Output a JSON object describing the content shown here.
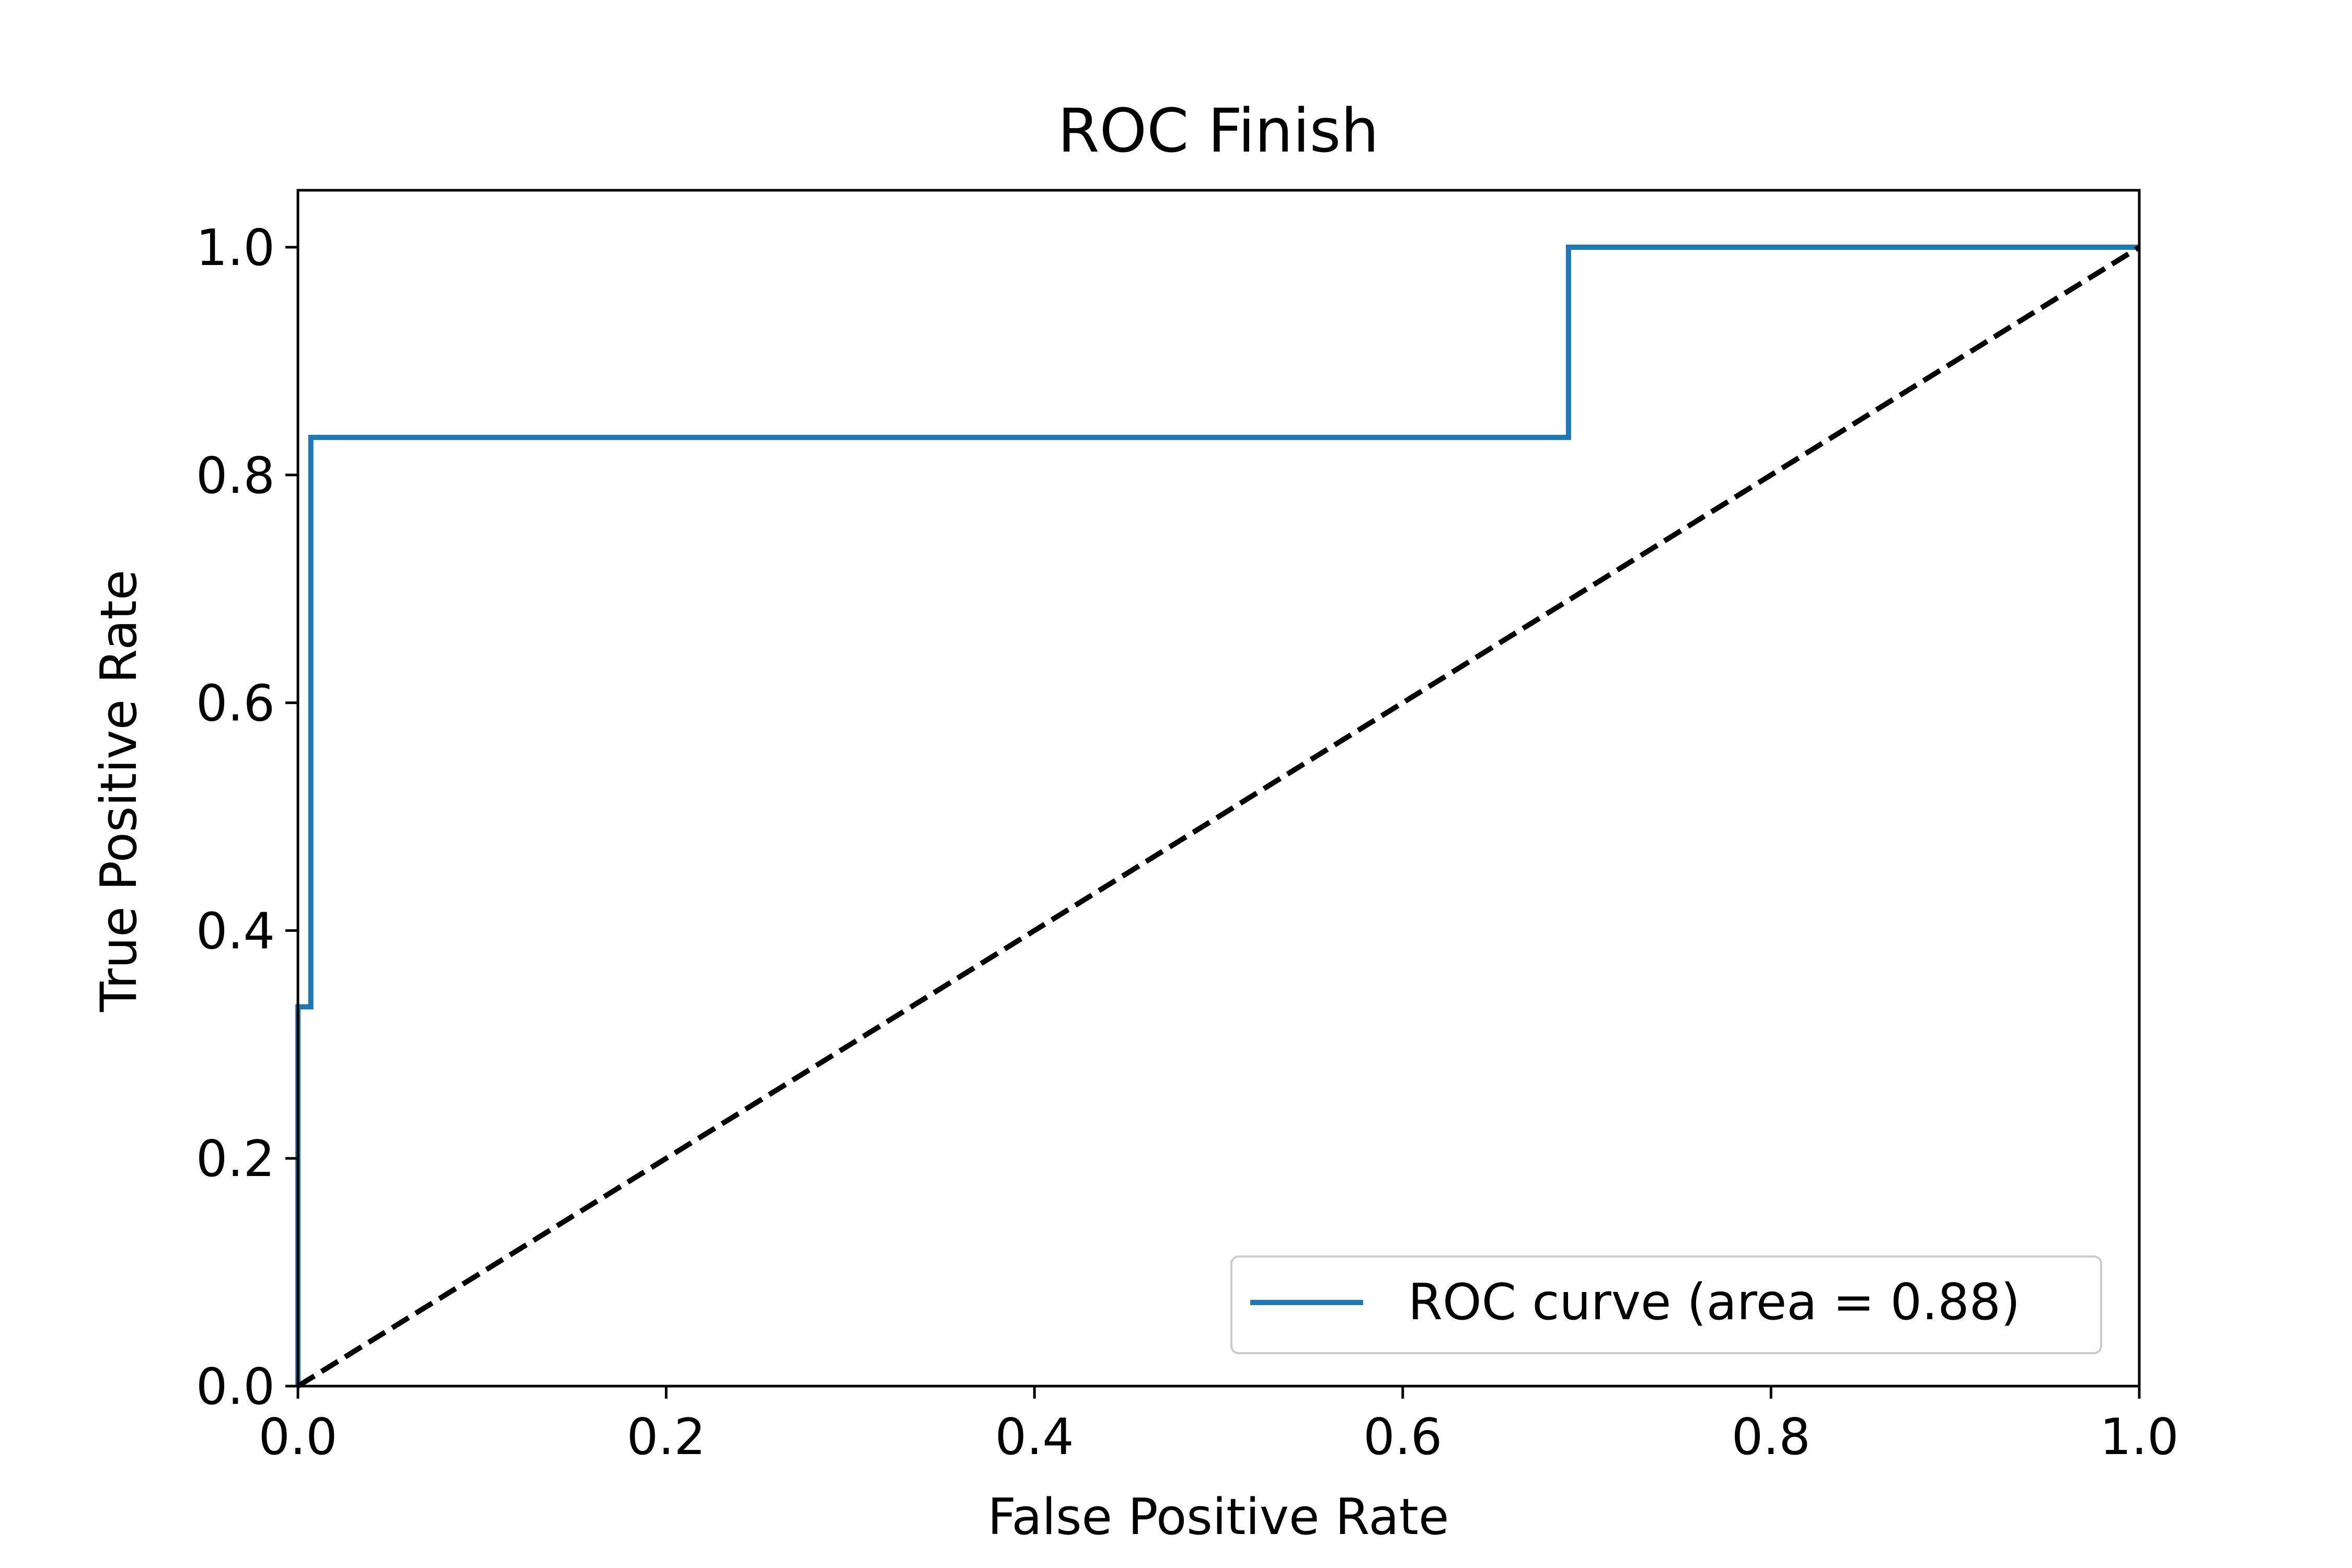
{
  "chart_data": {
    "type": "line",
    "title": "ROC Finish",
    "xlabel": "False Positive Rate",
    "ylabel": "True Positive Rate",
    "xlim": [
      0.0,
      1.0
    ],
    "ylim": [
      0.0,
      1.05
    ],
    "xticks": [
      "0.0",
      "0.2",
      "0.4",
      "0.6",
      "0.8",
      "1.0"
    ],
    "yticks": [
      "0.0",
      "0.2",
      "0.4",
      "0.6",
      "0.8",
      "1.0"
    ],
    "grid": false,
    "legend_position": "lower right",
    "series": [
      {
        "name": "ROC curve (area = 0.88)",
        "color": "#1f77b4",
        "style": "solid",
        "x": [
          0.0,
          0.0,
          0.007,
          0.007,
          0.69,
          0.69,
          1.0
        ],
        "y": [
          0.0,
          0.333,
          0.333,
          0.833,
          0.833,
          1.0,
          1.0
        ]
      },
      {
        "color": "#000000",
        "style": "dashed",
        "x": [
          0.0,
          1.0
        ],
        "y": [
          0.0,
          1.0
        ]
      }
    ]
  }
}
